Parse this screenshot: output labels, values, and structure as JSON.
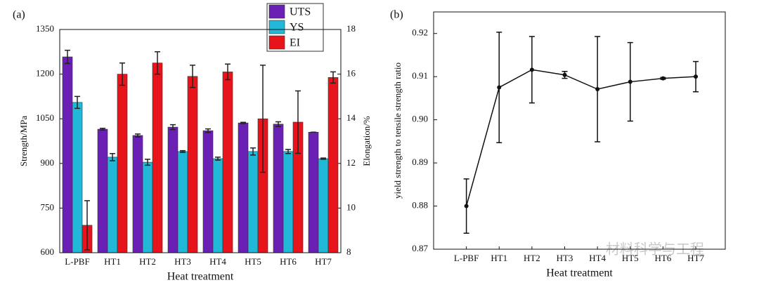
{
  "chart_data": [
    {
      "type": "bar",
      "label": "(a)",
      "x_label": "Heat treatment",
      "y_label": "Strength/MPa",
      "y2_label": "Elongation/%",
      "categories": [
        "L-PBF",
        "HT1",
        "HT2",
        "HT3",
        "HT4",
        "HT5",
        "HT6",
        "HT7"
      ],
      "series": [
        {
          "name": "UTS",
          "color": "#6a1fb5",
          "values": [
            1258,
            1015,
            994,
            1022,
            1010,
            1036,
            1032,
            1005
          ],
          "errors": [
            22,
            3,
            5,
            8,
            6,
            2,
            8,
            0
          ]
        },
        {
          "name": "YS",
          "color": "#22b8d8",
          "values": [
            1105,
            921,
            904,
            940,
            916,
            940,
            940,
            916
          ],
          "errors": [
            20,
            12,
            10,
            3,
            5,
            12,
            7,
            2
          ]
        },
        {
          "name": "EI",
          "color": "#e8141c",
          "axis": "y2",
          "values": [
            9.23,
            16.0,
            16.5,
            15.9,
            16.1,
            14.0,
            13.85,
            15.85
          ],
          "errors": [
            1.1,
            0.5,
            0.5,
            0.5,
            0.35,
            2.4,
            1.4,
            0.25
          ]
        }
      ],
      "ylim": [
        600,
        1350
      ],
      "yticks": [
        600,
        750,
        900,
        1050,
        1200,
        1350
      ],
      "y2lim": [
        8,
        18
      ],
      "y2ticks": [
        8,
        10,
        12,
        14,
        16,
        18
      ],
      "legend": "upper right"
    },
    {
      "type": "line",
      "label": "(b)",
      "x_label": "Heat treatment",
      "y_label": "yield strength to tensile strength ratio",
      "categories": [
        "L-PBF",
        "HT1",
        "HT2",
        "HT3",
        "HT4",
        "HT5",
        "HT6",
        "HT7"
      ],
      "series": [
        {
          "color": "#111111",
          "values": [
            0.88,
            0.9075,
            0.9116,
            0.9104,
            0.9071,
            0.9088,
            0.9096,
            0.91
          ],
          "errors": [
            0.0063,
            0.0128,
            0.0077,
            0.0008,
            0.0122,
            0.0091,
            0.0002,
            0.0035
          ]
        }
      ],
      "ylim": [
        0.87,
        0.925
      ],
      "yticks": [
        0.87,
        0.88,
        0.89,
        {
          "value": 0.9,
          "label": "0.90"
        },
        0.91,
        0.92
      ]
    }
  ],
  "watermark": "材料科学与工程"
}
